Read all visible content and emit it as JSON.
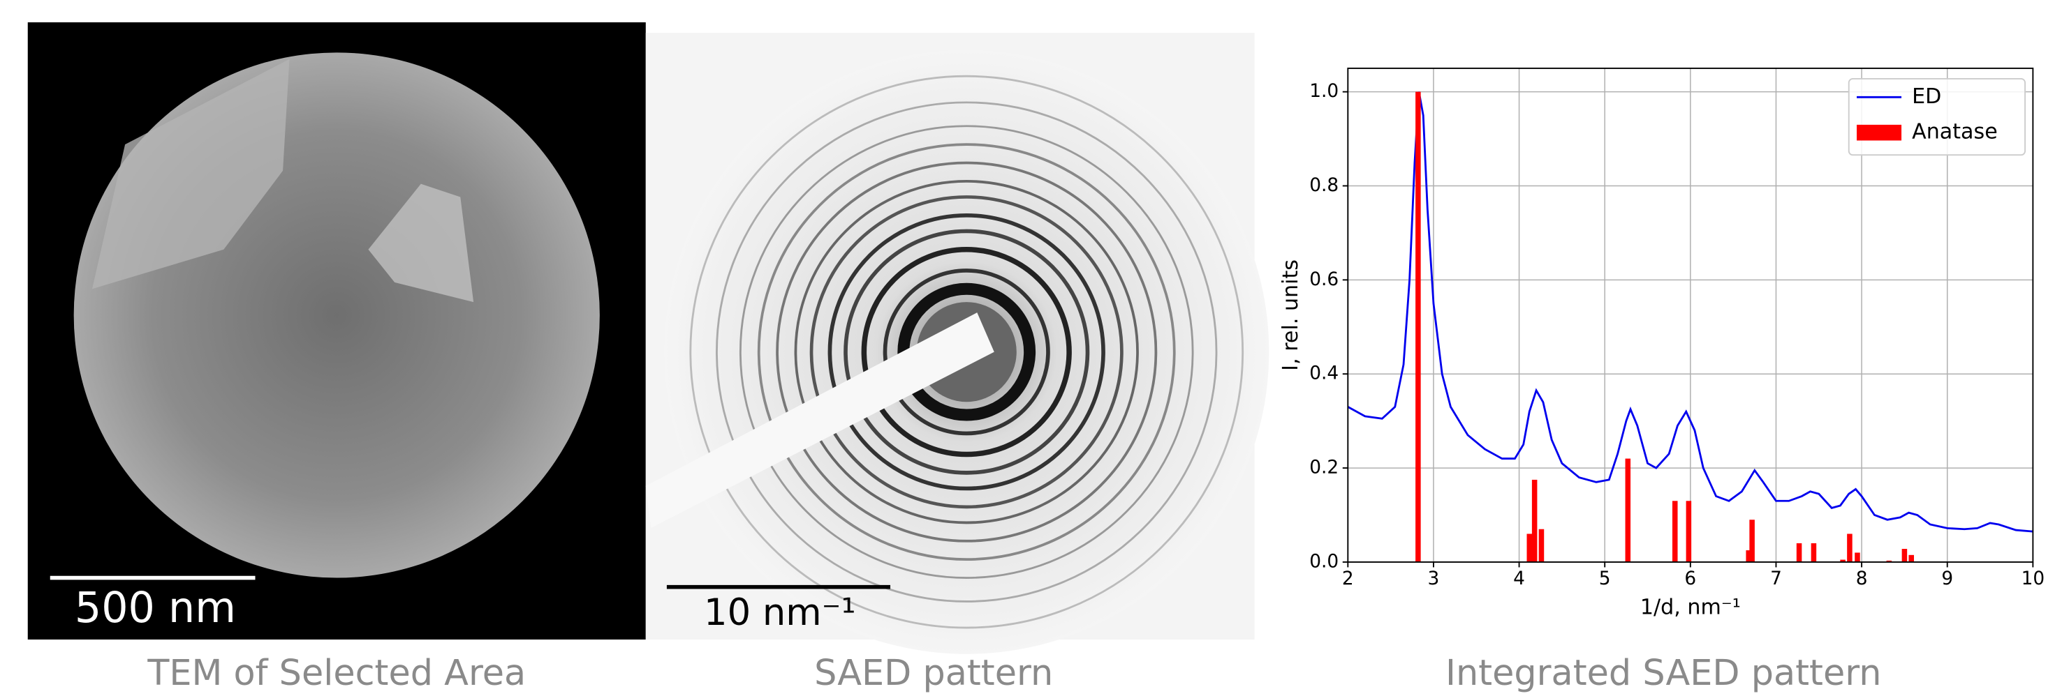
{
  "panels": [
    {
      "scale_bar": "500 nm",
      "caption": "TEM of Selected Area"
    },
    {
      "scale_bar": "10 nm⁻¹",
      "caption": "SAED pattern"
    },
    {
      "caption": "Integrated SAED pattern"
    }
  ],
  "chart_data": {
    "type": "line",
    "xlabel": "1/d, nm⁻¹",
    "ylabel": "I, rel. units",
    "xlim": [
      2,
      10
    ],
    "ylim": [
      0,
      1.05
    ],
    "xticks": [
      2,
      3,
      4,
      5,
      6,
      7,
      8,
      9,
      10
    ],
    "yticks": [
      {
        "value": 0,
        "label": "0.0"
      },
      {
        "value": 0.2,
        "label": "0.2"
      },
      {
        "value": 0.4,
        "label": "0.4"
      },
      {
        "value": 0.6,
        "label": "0.6"
      },
      {
        "value": 0.8,
        "label": "0.8"
      },
      {
        "value": 1,
        "label": "1.0"
      }
    ],
    "grid": true,
    "legend": "upper right",
    "series": [
      {
        "name": "ED",
        "type": "line",
        "color": "#0000ee",
        "x": [
          2.0,
          2.2,
          2.4,
          2.55,
          2.65,
          2.72,
          2.78,
          2.83,
          2.88,
          2.93,
          3.0,
          3.1,
          3.2,
          3.4,
          3.6,
          3.8,
          3.95,
          4.05,
          4.12,
          4.2,
          4.28,
          4.38,
          4.5,
          4.7,
          4.9,
          5.05,
          5.15,
          5.25,
          5.3,
          5.38,
          5.5,
          5.6,
          5.75,
          5.85,
          5.95,
          6.05,
          6.15,
          6.3,
          6.45,
          6.6,
          6.7,
          6.75,
          6.85,
          7.0,
          7.15,
          7.3,
          7.4,
          7.5,
          7.65,
          7.75,
          7.85,
          7.93,
          8.0,
          8.15,
          8.3,
          8.45,
          8.55,
          8.65,
          8.8,
          9.0,
          9.2,
          9.35,
          9.5,
          9.6,
          9.8,
          10.0
        ],
        "values": [
          0.33,
          0.31,
          0.305,
          0.33,
          0.42,
          0.6,
          0.85,
          1.0,
          0.95,
          0.75,
          0.55,
          0.4,
          0.33,
          0.27,
          0.24,
          0.22,
          0.22,
          0.25,
          0.32,
          0.365,
          0.34,
          0.26,
          0.21,
          0.18,
          0.17,
          0.175,
          0.23,
          0.3,
          0.325,
          0.29,
          0.21,
          0.2,
          0.23,
          0.29,
          0.32,
          0.28,
          0.2,
          0.14,
          0.13,
          0.15,
          0.18,
          0.195,
          0.17,
          0.13,
          0.13,
          0.14,
          0.15,
          0.145,
          0.115,
          0.12,
          0.145,
          0.155,
          0.14,
          0.1,
          0.09,
          0.095,
          0.105,
          0.1,
          0.08,
          0.072,
          0.07,
          0.072,
          0.083,
          0.08,
          0.068,
          0.065
        ]
      },
      {
        "name": "Anatase",
        "type": "bar",
        "color": "#ff0000",
        "x": [
          2.82,
          4.12,
          4.18,
          4.26,
          5.27,
          5.82,
          5.98,
          6.68,
          6.72,
          7.27,
          7.44,
          7.78,
          7.86,
          7.95,
          8.32,
          8.5,
          8.58
        ],
        "values": [
          1.0,
          0.06,
          0.175,
          0.07,
          0.22,
          0.13,
          0.13,
          0.025,
          0.09,
          0.04,
          0.04,
          0.005,
          0.06,
          0.02,
          0.003,
          0.028,
          0.015
        ]
      }
    ]
  }
}
